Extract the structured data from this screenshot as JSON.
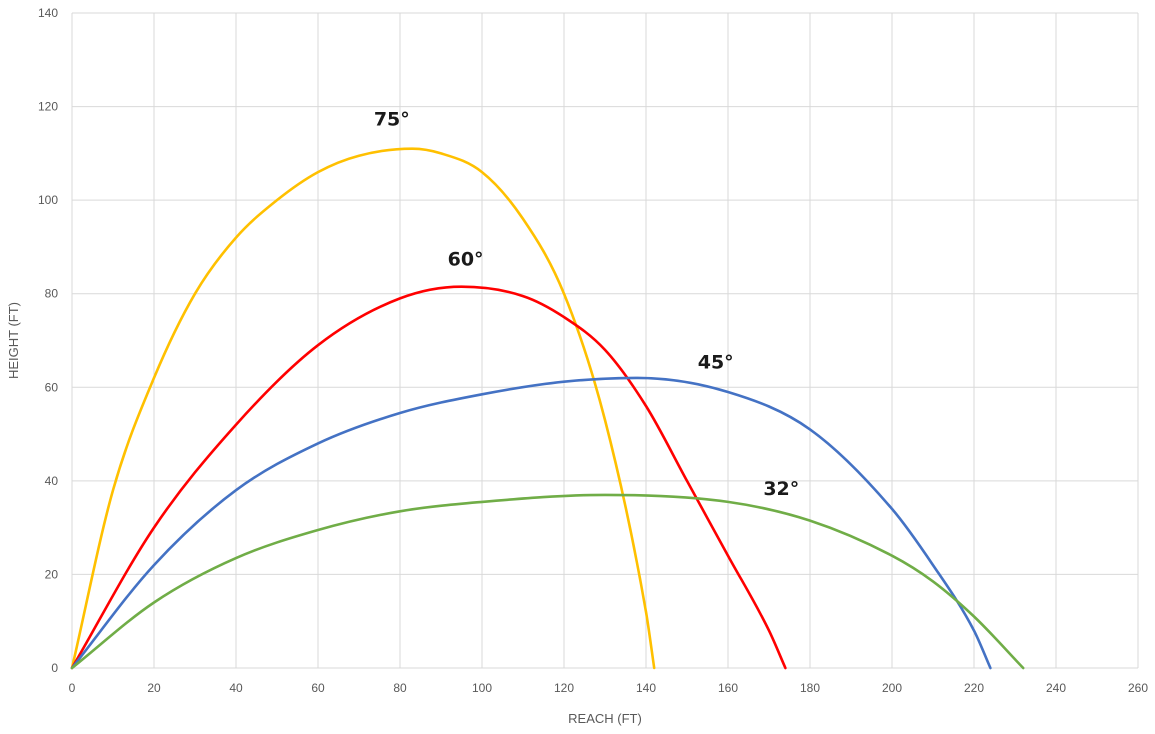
{
  "chart_data": {
    "type": "line",
    "title": "",
    "xlabel": "REACH (FT)",
    "ylabel": "HEIGHT (FT)",
    "xlim": [
      0,
      260
    ],
    "ylim": [
      0,
      140
    ],
    "x_ticks": [
      0,
      20,
      40,
      60,
      80,
      100,
      120,
      140,
      160,
      180,
      200,
      220,
      240,
      260
    ],
    "y_ticks": [
      0,
      20,
      40,
      60,
      80,
      100,
      120,
      140
    ],
    "grid": true,
    "legend": "none",
    "series": [
      {
        "name": "75°",
        "color": "#FFC000",
        "apex": [
          83,
          111
        ],
        "range": 142,
        "x": [
          0,
          10,
          20,
          30,
          40,
          50,
          60,
          70,
          83,
          90,
          100,
          110,
          120,
          130,
          140,
          142
        ],
        "y": [
          0,
          38,
          62,
          80,
          92,
          100,
          106,
          109.5,
          111,
          110,
          106,
          96,
          80,
          53,
          12,
          0
        ]
      },
      {
        "name": "60°",
        "color": "#FF0000",
        "apex": [
          95,
          81.5
        ],
        "range": 174,
        "x": [
          0,
          20,
          40,
          60,
          80,
          95,
          110,
          120,
          130,
          140,
          150,
          160,
          170,
          174
        ],
        "y": [
          0,
          30,
          52,
          69,
          79,
          81.5,
          79.5,
          75,
          68,
          56,
          40,
          24,
          8,
          0
        ]
      },
      {
        "name": "45°",
        "color": "#4472C4",
        "apex": [
          138,
          62
        ],
        "range": 224,
        "x": [
          0,
          20,
          40,
          60,
          80,
          100,
          120,
          138,
          160,
          180,
          200,
          210,
          220,
          224
        ],
        "y": [
          0,
          22,
          38,
          48,
          54.5,
          58.5,
          61.2,
          62,
          59,
          51,
          34,
          22,
          8,
          0
        ]
      },
      {
        "name": "32°",
        "color": "#70AD47",
        "apex": [
          130,
          37
        ],
        "range": 232,
        "x": [
          0,
          20,
          40,
          60,
          80,
          100,
          130,
          160,
          180,
          200,
          210,
          220,
          232
        ],
        "y": [
          0,
          14,
          23.5,
          29.5,
          33.5,
          35.5,
          37,
          35.5,
          31.5,
          24,
          18.5,
          11,
          0
        ]
      }
    ],
    "annotations": [
      {
        "text": "75°",
        "x": 78,
        "y": 116
      },
      {
        "text": "60°",
        "x": 96,
        "y": 86
      },
      {
        "text": "45°",
        "x": 157,
        "y": 64
      },
      {
        "text": "32°",
        "x": 173,
        "y": 37
      }
    ]
  }
}
